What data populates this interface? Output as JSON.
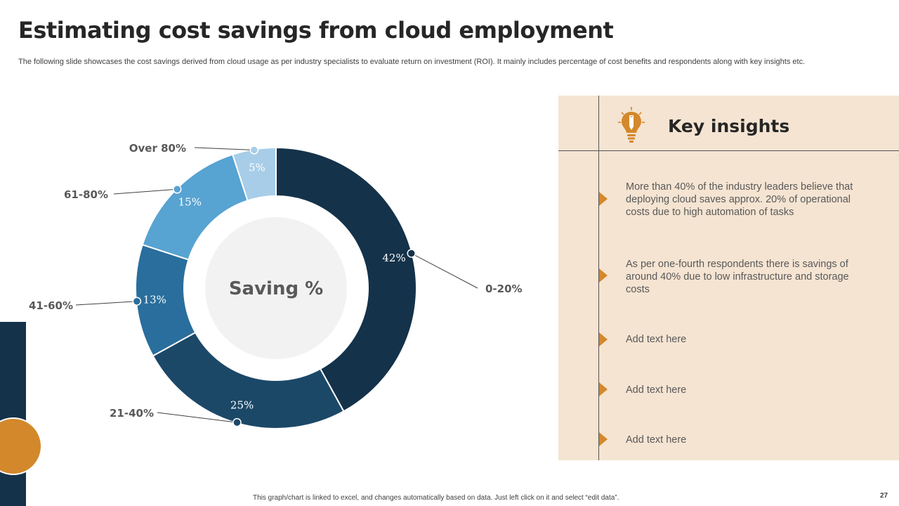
{
  "title": "Estimating cost savings from cloud employment",
  "subtitle": "The following slide showcases the cost savings derived from cloud usage as per industry specialists to evaluate return on investment (ROI). It mainly includes percentage of cost benefits and respondents along with key insights etc.",
  "chart_data": {
    "type": "pie",
    "variant": "donut",
    "title": "Saving %",
    "categories": [
      "0-20%",
      "21-40%",
      "41-60%",
      "61-80%",
      "Over 80%"
    ],
    "values": [
      42,
      25,
      13,
      15,
      5
    ],
    "value_labels": [
      "42%",
      "25%",
      "13%",
      "15%",
      "5%"
    ],
    "colors": [
      "#14324a",
      "#1c4868",
      "#296e9d",
      "#57a3d2",
      "#a7cde8"
    ]
  },
  "insights": {
    "heading": "Key insights",
    "items": [
      "More than 40% of the industry leaders believe that deploying cloud saves approx. 20% of operational costs due to high automation of tasks",
      "As per one-fourth respondents there is savings of around 40% due to low infrastructure and storage costs",
      "Add text here",
      "Add text here",
      "Add text here"
    ]
  },
  "footnote": "This graph/chart is linked to excel, and changes automatically based on data. Just left click on it and select “edit data”.",
  "page_number": "27",
  "colors": {
    "accent": "#d4882c",
    "navy": "#14324a",
    "panel": "#f5e4d2"
  }
}
